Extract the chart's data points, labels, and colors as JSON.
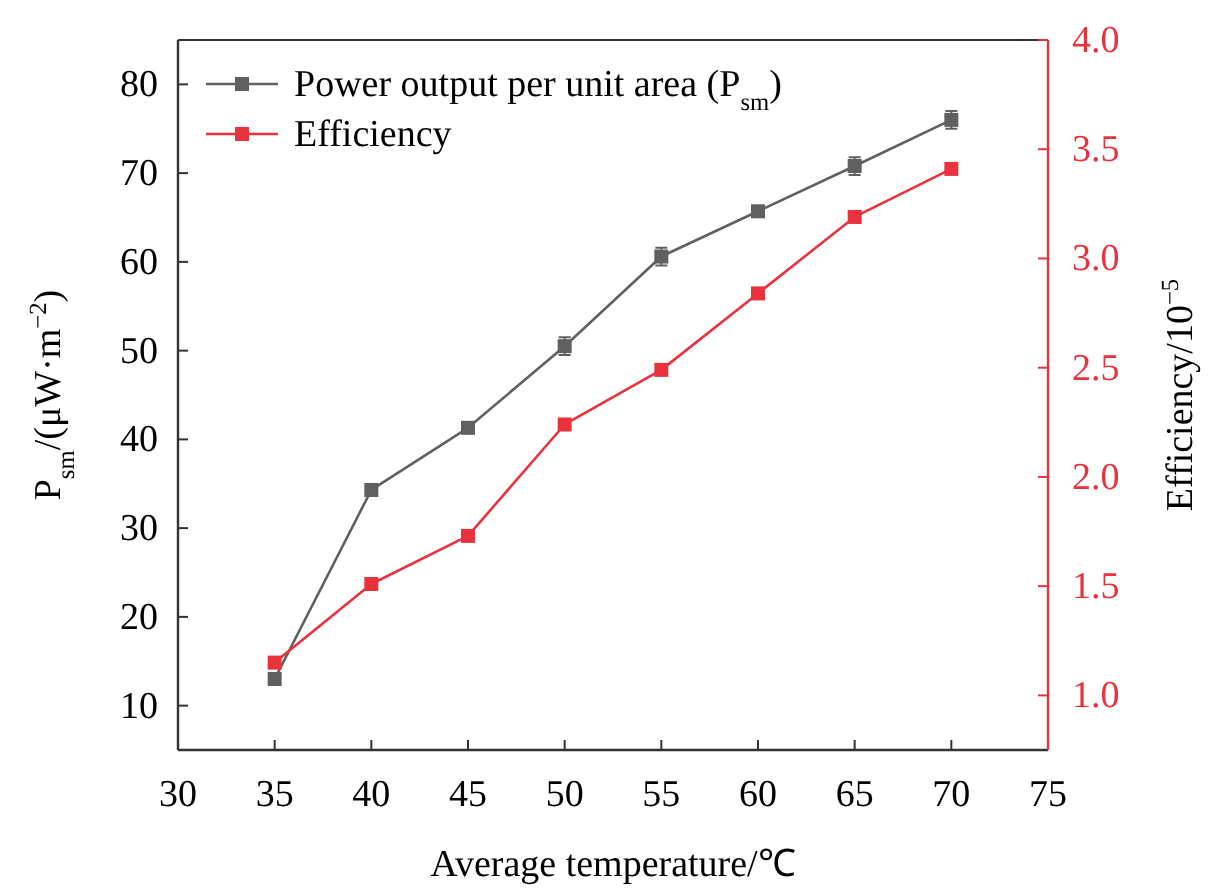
{
  "chart_data": {
    "type": "line",
    "xlabel": "Average temperature/℃",
    "ylabel": "P$_{sm}$/(μW·m$^{−2}$)",
    "y2label": "Efficiency/10$^{−5}$",
    "x": [
      35,
      40,
      45,
      50,
      55,
      60,
      65,
      70
    ],
    "series": [
      {
        "name": "Power output per unit area (P$_{sm}$)",
        "color": "#606060",
        "values": [
          13,
          34.3,
          41.3,
          50.5,
          60.6,
          65.7,
          70.8,
          76.0
        ],
        "errors": [
          null,
          null,
          null,
          1,
          1,
          null,
          1,
          1
        ]
      },
      {
        "name": "Efficiency",
        "color": "#e8323c",
        "axis": "y2",
        "values": [
          1.15,
          1.51,
          1.73,
          2.24,
          2.49,
          2.84,
          3.19,
          3.41
        ]
      }
    ],
    "xlim": [
      30,
      75
    ],
    "xticks": [
      30,
      35,
      40,
      45,
      50,
      55,
      60,
      65,
      70,
      75
    ],
    "ylim": [
      5,
      85
    ],
    "yticks": [
      10,
      20,
      30,
      40,
      50,
      60,
      70,
      80
    ],
    "y2lim": [
      0.75,
      4.0
    ],
    "y2ticks": [
      {
        "value": 1,
        "label": "1.0"
      },
      {
        "value": 1.5,
        "label": "1.5"
      },
      {
        "value": 2,
        "label": "2.0"
      },
      {
        "value": 2.5,
        "label": "2.5"
      },
      {
        "value": 3,
        "label": "3.0"
      },
      {
        "value": 3.5,
        "label": "3.5"
      },
      {
        "value": 4,
        "label": "4.0"
      }
    ],
    "marker": "square",
    "legend": "top left",
    "grid": false
  }
}
